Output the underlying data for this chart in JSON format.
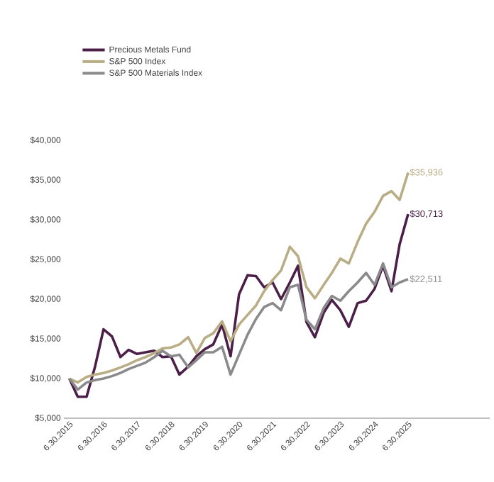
{
  "chart_data": {
    "type": "line",
    "x": [
      "2015-06-30",
      "2015-09-30",
      "2015-12-31",
      "2016-03-31",
      "2016-06-30",
      "2016-09-30",
      "2016-12-31",
      "2017-03-31",
      "2017-06-30",
      "2017-09-30",
      "2017-12-31",
      "2018-03-31",
      "2018-06-30",
      "2018-09-30",
      "2018-12-31",
      "2019-03-31",
      "2019-06-30",
      "2019-09-30",
      "2019-12-31",
      "2020-03-31",
      "2020-06-30",
      "2020-09-30",
      "2020-12-31",
      "2021-03-31",
      "2021-06-30",
      "2021-09-30",
      "2021-12-31",
      "2022-03-31",
      "2022-06-30",
      "2022-09-30",
      "2022-12-31",
      "2023-03-31",
      "2023-06-30",
      "2023-09-30",
      "2023-12-31",
      "2024-03-31",
      "2024-06-30",
      "2024-09-30",
      "2024-12-31",
      "2025-03-31",
      "2025-06-30"
    ],
    "series": [
      {
        "name": "Precious Metals Fund",
        "color": "#4b1f48",
        "values": [
          10000,
          7700,
          7700,
          11500,
          16200,
          15300,
          12700,
          13600,
          13100,
          13300,
          13500,
          12700,
          12800,
          10500,
          11500,
          12800,
          13700,
          14300,
          16800,
          12800,
          20600,
          23000,
          22900,
          21500,
          22100,
          20000,
          22100,
          24200,
          17100,
          15200,
          18300,
          19900,
          18600,
          16500,
          19500,
          19800,
          21300,
          24200,
          21000,
          26900,
          30713
        ]
      },
      {
        "name": "S&P 500 Index",
        "color": "#b9ad85",
        "values": [
          10000,
          9500,
          10200,
          10500,
          10700,
          11000,
          11400,
          11800,
          12300,
          12700,
          13200,
          13800,
          13900,
          14300,
          15200,
          13200,
          15100,
          15700,
          17200,
          14700,
          16800,
          18000,
          19200,
          21000,
          22400,
          23600,
          26600,
          25400,
          21500,
          20100,
          21800,
          23300,
          25100,
          24500,
          27200,
          29500,
          31000,
          33000,
          33600,
          32500,
          35936
        ]
      },
      {
        "name": "S&P 500 Materials Index",
        "color": "#8a8a8c",
        "values": [
          10000,
          8600,
          9500,
          9800,
          10000,
          10300,
          10700,
          11200,
          11600,
          12000,
          12700,
          13500,
          12800,
          13000,
          11400,
          12300,
          13300,
          13300,
          14000,
          10500,
          13000,
          15500,
          17500,
          19000,
          19500,
          18600,
          21500,
          21800,
          17400,
          16200,
          18900,
          20400,
          19800,
          21000,
          22100,
          23300,
          21800,
          24500,
          21500,
          22100,
          22511
        ]
      }
    ],
    "xlim": [
      "2015-05-01",
      "2027-11-24"
    ],
    "xticks": [
      {
        "value": "2015-06-30",
        "label": "6.30.2015"
      },
      {
        "value": "2016-06-30",
        "label": "6.30.2016"
      },
      {
        "value": "2017-06-30",
        "label": "6.30.2017"
      },
      {
        "value": "2018-06-30",
        "label": "6.30.2018"
      },
      {
        "value": "2019-06-30",
        "label": "6.30.2019"
      },
      {
        "value": "2020-06-30",
        "label": "6.30.2020"
      },
      {
        "value": "2021-06-30",
        "label": "6.30.2021"
      },
      {
        "value": "2022-06-30",
        "label": "6.30.2022"
      },
      {
        "value": "2023-06-30",
        "label": "6.30.2023"
      },
      {
        "value": "2024-06-30",
        "label": "6.30.2024"
      },
      {
        "value": "2025-06-30",
        "label": "6.30.2025"
      }
    ],
    "ylim": [
      5000,
      40000
    ],
    "yticks": [
      {
        "value": 5000,
        "label": "$5,000"
      },
      {
        "value": 10000,
        "label": "$10,000"
      },
      {
        "value": 15000,
        "label": "$15,000"
      },
      {
        "value": 20000,
        "label": "$20,000"
      },
      {
        "value": 25000,
        "label": "$25,000"
      },
      {
        "value": 30000,
        "label": "$30,000"
      },
      {
        "value": 35000,
        "label": "$35,000"
      },
      {
        "value": 40000,
        "label": "$40,000"
      }
    ],
    "annotations": [
      {
        "text": "$35,936",
        "x": "2025-06-30",
        "y": 35936
      },
      {
        "text": "$30,713",
        "x": "2025-06-30",
        "y": 30713
      },
      {
        "text": "$22,511",
        "x": "2025-06-30",
        "y": 22511
      }
    ],
    "grid": false,
    "legend": "top left",
    "marker": "none",
    "line_style": "solid"
  }
}
